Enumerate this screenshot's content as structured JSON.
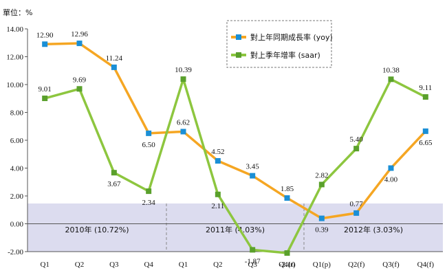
{
  "unit_label": "單位：%",
  "year_bands": [
    "2010年 (10.72%)",
    "2011年 (4.03%)",
    "2012年 (3.03%)"
  ],
  "colors": {
    "yoy": "#f5a623",
    "saar": "#8dc63f",
    "yoy_marker": "#1a8fd6",
    "saar_marker": "#5aa02c",
    "band": "#dcdcef"
  },
  "chart_data": {
    "type": "line",
    "categories": [
      "Q1",
      "Q2",
      "Q3",
      "Q4",
      "Q1",
      "Q2",
      "Q3",
      "Q4(r)",
      "Q1(p)",
      "Q2(f)",
      "Q3(f)",
      "Q4(f)"
    ],
    "ylim": [
      -2.0,
      14.0
    ],
    "yticks": [
      "14.00",
      "12.00",
      "10.00",
      "8.00",
      "6.00",
      "4.00",
      "2.00",
      "0.00",
      "-2.00"
    ],
    "series": [
      {
        "name": "對上年同期成長率 (yoy)",
        "values": [
          12.9,
          12.96,
          11.24,
          6.5,
          6.62,
          4.52,
          3.45,
          1.85,
          0.39,
          0.77,
          4.0,
          6.65
        ]
      },
      {
        "name": "對上季年增率 (saar)",
        "values": [
          9.01,
          9.69,
          3.67,
          2.34,
          10.39,
          2.11,
          -1.87,
          -2.1,
          2.82,
          5.4,
          10.38,
          9.11
        ]
      }
    ],
    "legend_position": "top-right",
    "grid": false
  }
}
